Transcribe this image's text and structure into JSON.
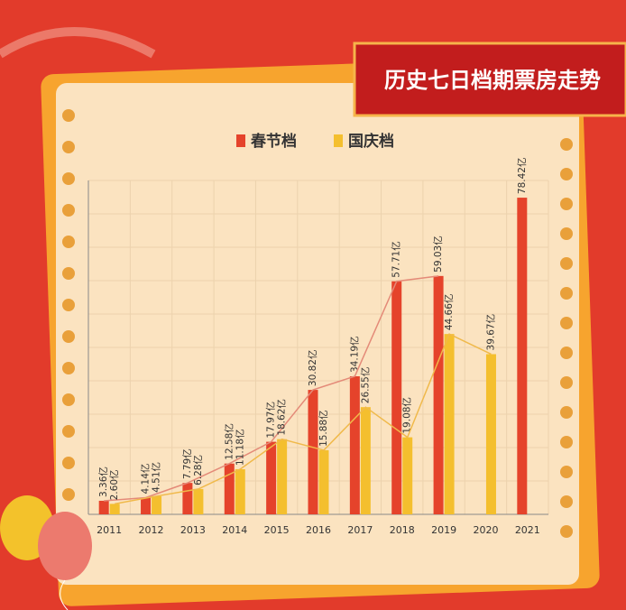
{
  "chart_data": {
    "type": "bar",
    "title": "历史七日档期票房走势",
    "categories": [
      "2011",
      "2012",
      "2013",
      "2014",
      "2015",
      "2016",
      "2017",
      "2018",
      "2019",
      "2020",
      "2021"
    ],
    "series": [
      {
        "name": "春节档",
        "color": "#e5432b",
        "values": [
          3.36,
          4.14,
          7.79,
          12.58,
          17.97,
          30.82,
          34.19,
          57.71,
          59.03,
          null,
          78.42
        ],
        "value_labels": [
          "3.36亿",
          "4.14亿",
          "7.79亿",
          "12.58亿",
          "17.97亿",
          "30.82亿",
          "34.19亿",
          "57.71亿",
          "59.03亿",
          null,
          "78.42亿"
        ]
      },
      {
        "name": "国庆档",
        "color": "#f4bf2e",
        "values": [
          2.6,
          4.51,
          6.28,
          11.18,
          18.62,
          15.88,
          26.55,
          19.08,
          44.66,
          39.67,
          null
        ],
        "value_labels": [
          "2.60亿",
          "4.51亿",
          "6.28亿",
          "11.18亿",
          "18.62亿",
          "15.88亿",
          "26.55亿",
          "19.08亿",
          "44.66亿",
          "39.67亿",
          null
        ]
      }
    ],
    "ylim": [
      0,
      80
    ]
  }
}
